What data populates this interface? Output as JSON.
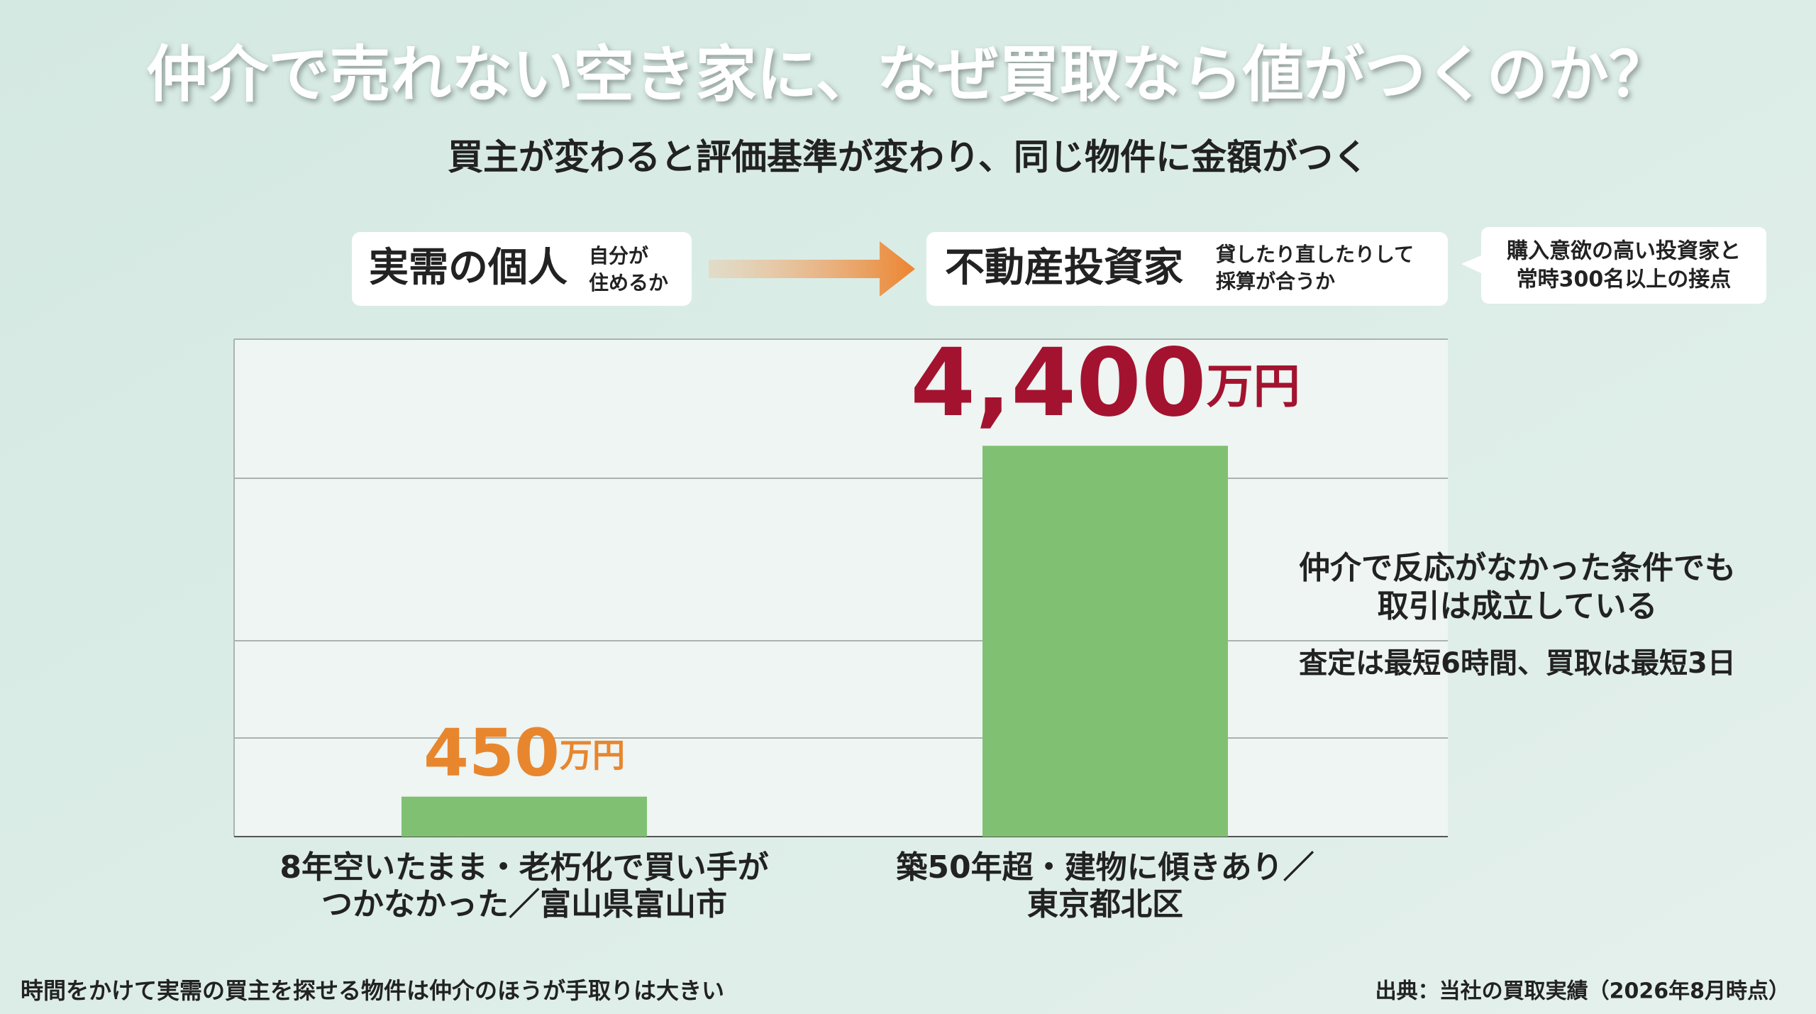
{
  "chart_data": {
    "type": "bar",
    "title": "仲介で売れない空き家に、なぜ買取なら値がつくのか？",
    "subtitle": "買主が変わると評価基準が変わり、同じ物件に金額がつく",
    "flow": {
      "from": {
        "label": "実需の個人",
        "note": [
          "自分が",
          "住めるか"
        ]
      },
      "to": {
        "label": "不動産投資家",
        "note": [
          "貸したり直したりして",
          "採算が合うか"
        ]
      },
      "callout": [
        "購入意欲の高い投資家と",
        "常時300名以上の接点"
      ]
    },
    "categories": [
      [
        "8年空いたまま・老朽化で買い手が",
        "つかなかった／富山県富山市"
      ],
      [
        "築50年超・建物に傾きあり／",
        "東京都北区"
      ]
    ],
    "values": [
      450,
      4400
    ],
    "value_labels": [
      "450万円",
      "4,400万円"
    ],
    "value_label_colors": [
      "#e8862e",
      "#a3132f"
    ],
    "color": "#80c072",
    "ylim": [
      0,
      5600
    ],
    "annotations": [
      "仲介で反応がなかった条件でも",
      "取引は成立している",
      "査定は最短6時間、買取は最短3日"
    ],
    "footnote": "時間をかけて実需の買主を探せる物件は仲介のほうが手取りは大きい",
    "source": "出典：当社の買取実績（2026年8月時点）"
  }
}
